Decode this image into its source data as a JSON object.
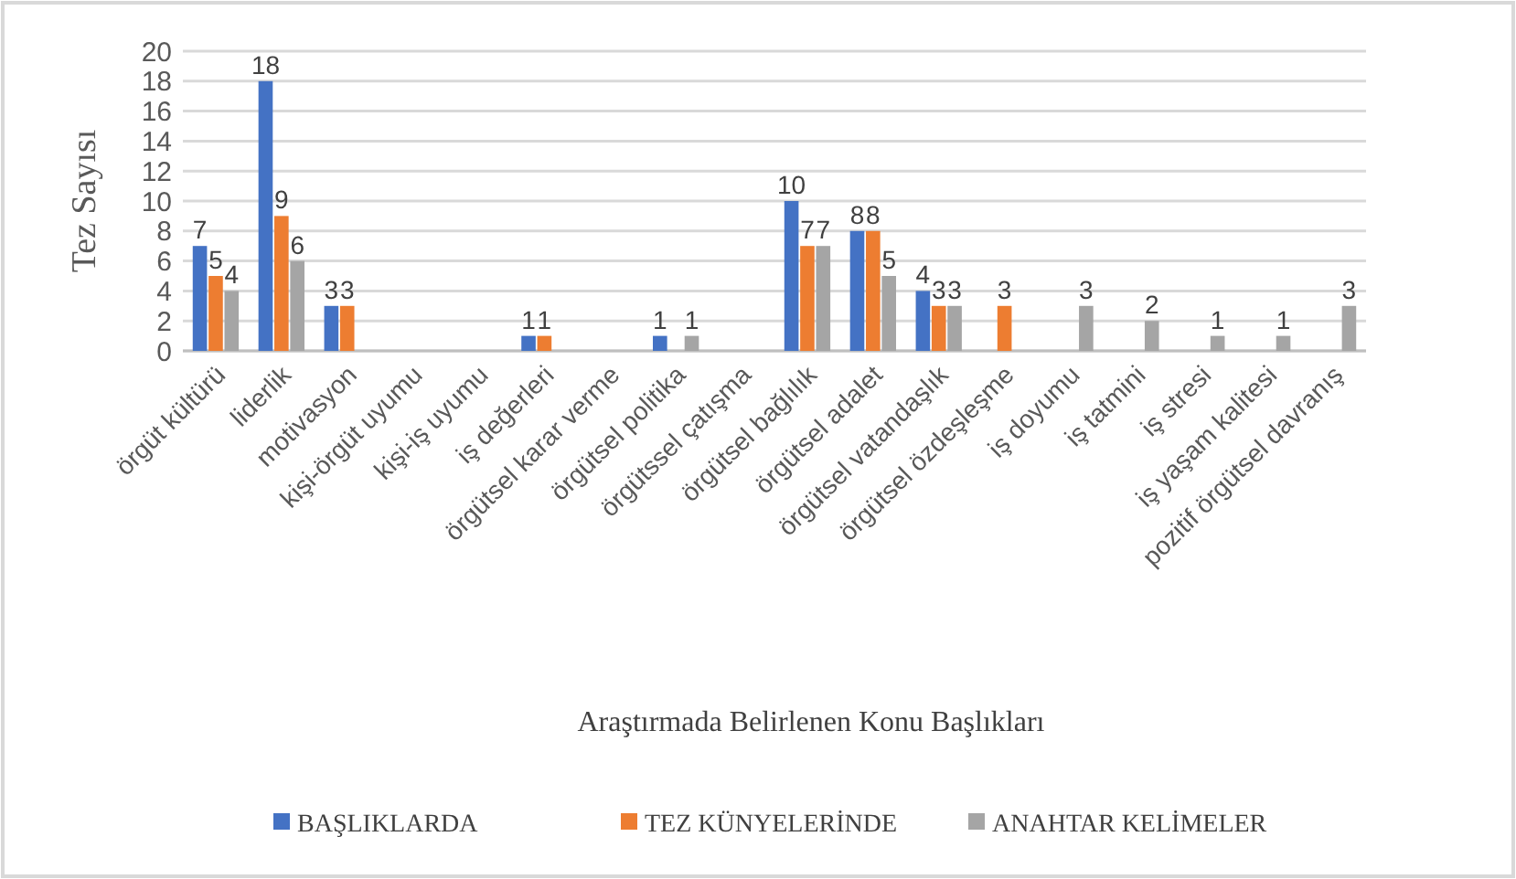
{
  "chart_data": {
    "type": "bar",
    "xlabel": "Araştırmada Belirlenen Konu Başlıkları",
    "ylabel": "Tez Sayısı",
    "categories": [
      "örgüt kültürü",
      "liderlik",
      "motivasyon",
      "kişi-örgüt uyumu",
      "kişi-iş uyumu",
      "iş değerleri",
      "örgütsel karar verme",
      "örgütsel politika",
      "örgütssel çatışma",
      "örgütsel bağlılık",
      "örgütsel adalet",
      "örgütsel vatandaşlık",
      "örgütsel özdeşleşme",
      "iş doyumu",
      "iş tatmini",
      "iş stresi",
      "iş yaşam kalitesi",
      "pozitif örgütsel davranış"
    ],
    "series": [
      {
        "name": "BAŞLIKLARDA",
        "color": "#4472c4",
        "values": [
          7,
          18,
          3,
          null,
          null,
          1,
          null,
          1,
          null,
          10,
          8,
          4,
          null,
          null,
          null,
          null,
          null,
          null
        ]
      },
      {
        "name": "TEZ KÜNYELERİNDE",
        "color": "#ed7d31",
        "values": [
          5,
          9,
          3,
          null,
          null,
          1,
          null,
          null,
          null,
          7,
          8,
          3,
          3,
          null,
          null,
          null,
          null,
          null
        ]
      },
      {
        "name": "ANAHTAR KELİMELER",
        "color": "#a5a5a5",
        "values": [
          4,
          6,
          null,
          null,
          null,
          null,
          null,
          1,
          null,
          7,
          5,
          3,
          null,
          3,
          2,
          1,
          1,
          3
        ]
      }
    ],
    "ylim": [
      0,
      20
    ],
    "yticks": [
      0,
      2,
      4,
      6,
      8,
      10,
      12,
      14,
      16,
      18,
      20
    ],
    "grid": "y",
    "legend": "bottom",
    "data_labels": true
  }
}
